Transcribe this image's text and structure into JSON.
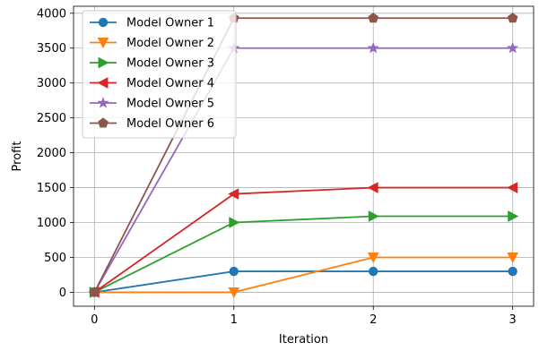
{
  "chart_data": {
    "type": "line",
    "xlabel": "Iteration",
    "ylabel": "Profit",
    "x": [
      0,
      1,
      2,
      3
    ],
    "xticks": [
      "0",
      "1",
      "2",
      "3"
    ],
    "xlim": [
      -0.15,
      3.15
    ],
    "ylim": [
      -200,
      4100
    ],
    "yticks": [
      "0",
      "500",
      "1000",
      "1500",
      "2000",
      "2500",
      "3000",
      "3500",
      "4000"
    ],
    "grid": true,
    "legend_position": "upper-left",
    "series": [
      {
        "name": "Model Owner 1",
        "values": [
          0,
          300,
          300,
          300
        ],
        "color": "#1f77b4",
        "marker": "circle"
      },
      {
        "name": "Model Owner 2",
        "values": [
          0,
          0,
          500,
          500
        ],
        "color": "#ff7f0e",
        "marker": "triangle-down"
      },
      {
        "name": "Model Owner 3",
        "values": [
          0,
          1000,
          1090,
          1090
        ],
        "color": "#2ca02c",
        "marker": "triangle-right"
      },
      {
        "name": "Model Owner 4",
        "values": [
          0,
          1410,
          1500,
          1500
        ],
        "color": "#d62728",
        "marker": "triangle-left"
      },
      {
        "name": "Model Owner 5",
        "values": [
          0,
          3500,
          3500,
          3500
        ],
        "color": "#9467bd",
        "marker": "star"
      },
      {
        "name": "Model Owner 6",
        "values": [
          0,
          3930,
          3930,
          3930
        ],
        "color": "#8c564b",
        "marker": "pentagon"
      }
    ]
  }
}
